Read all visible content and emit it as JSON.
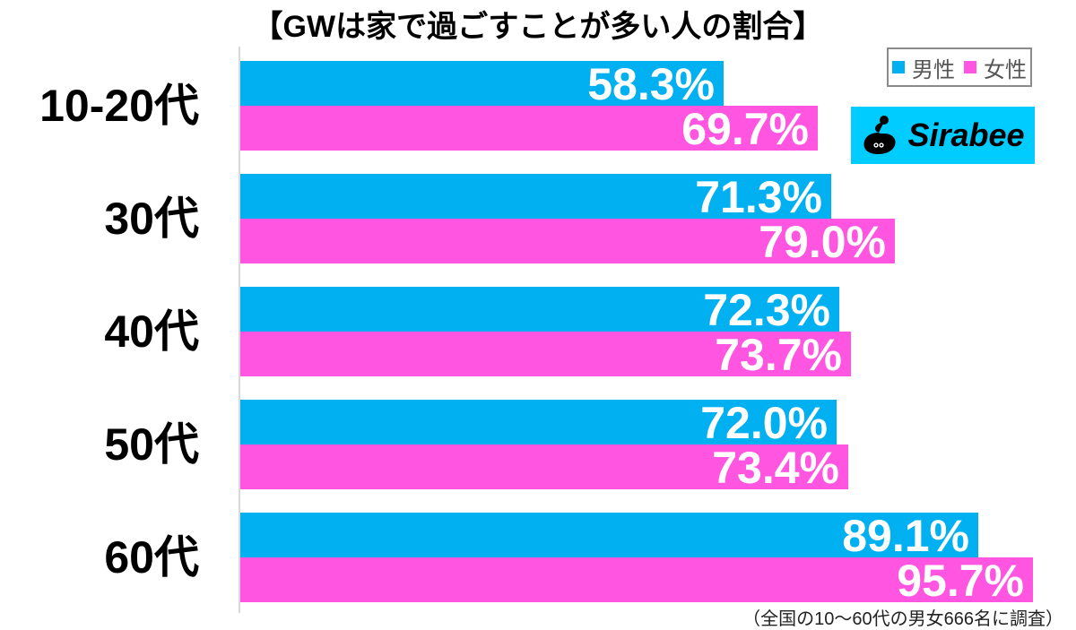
{
  "title": "【GWは家で過ごすことが多い人の割合】",
  "legend": {
    "male_label": "男性",
    "female_label": "女性"
  },
  "logo": {
    "text": "Sirabee"
  },
  "note": "（全国の10～60代の男女666名に調査）",
  "colors": {
    "male": "#00b0f0",
    "female": "#ff55e0",
    "logo_bg": "#00ccff"
  },
  "groups": [
    {
      "label": "10-20代",
      "male": "58.3%",
      "female": "69.7%"
    },
    {
      "label": "30代",
      "male": "71.3%",
      "female": "79.0%"
    },
    {
      "label": "40代",
      "male": "72.3%",
      "female": "73.7%"
    },
    {
      "label": "50代",
      "male": "72.0%",
      "female": "73.4%"
    },
    {
      "label": "60代",
      "male": "89.1%",
      "female": "95.7%"
    }
  ],
  "chart_data": {
    "type": "bar",
    "orientation": "horizontal",
    "title": "【GWは家で過ごすことが多い人の割合】",
    "categories": [
      "10-20代",
      "30代",
      "40代",
      "50代",
      "60代"
    ],
    "series": [
      {
        "name": "男性",
        "color": "#00b0f0",
        "values": [
          58.3,
          71.3,
          72.3,
          72.0,
          89.1
        ]
      },
      {
        "name": "女性",
        "color": "#ff55e0",
        "values": [
          69.7,
          79.0,
          73.7,
          73.4,
          95.7
        ]
      }
    ],
    "xlabel": "",
    "ylabel": "",
    "xlim": [
      0,
      100
    ],
    "unit": "%",
    "grid": false,
    "legend_position": "top-right",
    "annotations": [
      "（全国の10～60代の男女666名に調査）",
      "Sirabee"
    ]
  }
}
